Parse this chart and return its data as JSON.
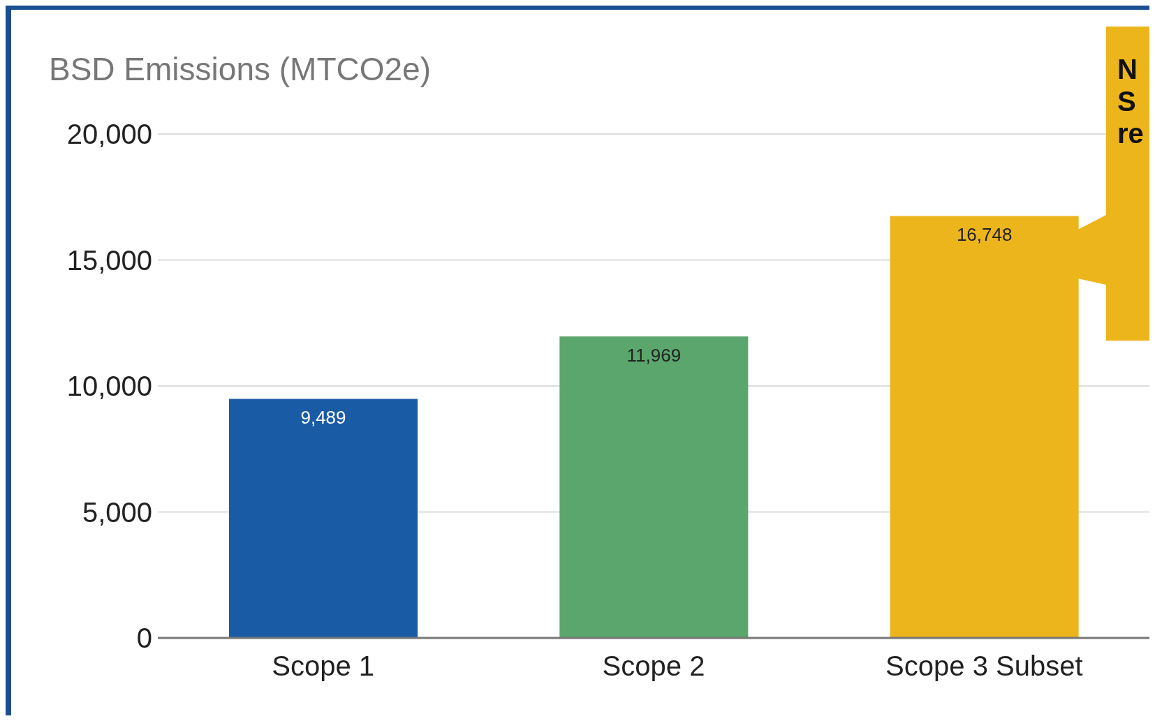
{
  "chart_data": {
    "type": "bar",
    "title": "BSD Emissions (MTCO2e)",
    "categories": [
      "Scope 1",
      "Scope 2",
      "Scope 3 Subset"
    ],
    "values": [
      9489,
      11969,
      16748
    ],
    "colors": [
      "#1a5ba6",
      "#5ba66c",
      "#ecb51c"
    ],
    "ylim": [
      0,
      20000
    ],
    "yticks": [
      {
        "value": 0,
        "label": "0"
      },
      {
        "value": 5000,
        "label": "5,000"
      },
      {
        "value": 10000,
        "label": "10,000"
      },
      {
        "value": 15000,
        "label": "15,000"
      },
      {
        "value": 20000,
        "label": "20,000"
      }
    ],
    "grid": "y",
    "value_labels": [
      "9,489",
      "11,969",
      "16,748"
    ],
    "annotations": [
      "N",
      "S",
      "re"
    ]
  }
}
